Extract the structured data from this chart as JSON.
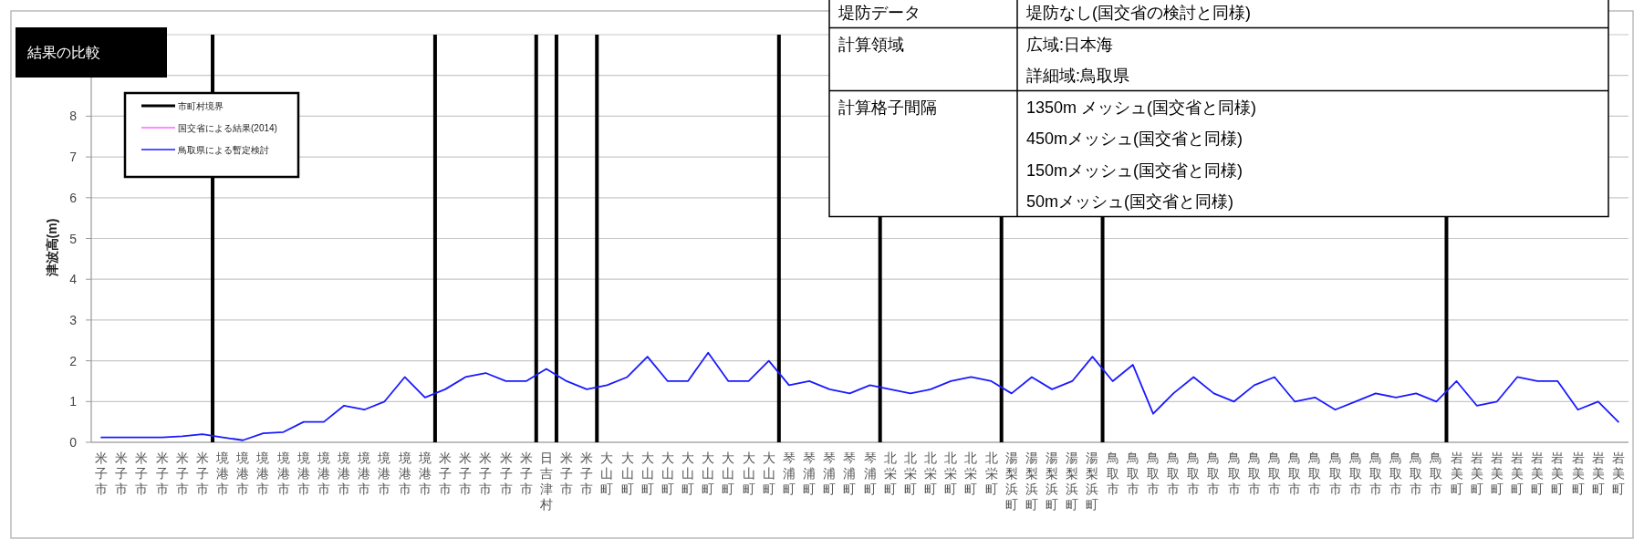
{
  "chart_data": [
    {
      "type": "line",
      "title": "結果の比較",
      "ylabel": "津波高(m)",
      "categories": [
        "米子市",
        "米子市",
        "米子市",
        "米子市",
        "米子市",
        "米子市",
        "境港市",
        "境港市",
        "境港市",
        "境港市",
        "境港市",
        "境港市",
        "境港市",
        "境港市",
        "境港市",
        "境港市",
        "境港市",
        "米子市",
        "米子市",
        "米子市",
        "米子市",
        "米子市",
        "日吉津村",
        "米子市",
        "米子市",
        "大山町",
        "大山町",
        "大山町",
        "大山町",
        "大山町",
        "大山町",
        "大山町",
        "大山町",
        "大山町",
        "琴浦町",
        "琴浦町",
        "琴浦町",
        "琴浦町",
        "琴浦町",
        "北栄町",
        "北栄町",
        "北栄町",
        "北栄町",
        "北栄町",
        "北栄町",
        "湯梨浜町",
        "湯梨浜町",
        "湯梨浜町",
        "湯梨浜町",
        "湯梨浜町",
        "鳥取市",
        "鳥取市",
        "鳥取市",
        "鳥取市",
        "鳥取市",
        "鳥取市",
        "鳥取市",
        "鳥取市",
        "鳥取市",
        "鳥取市",
        "鳥取市",
        "鳥取市",
        "鳥取市",
        "鳥取市",
        "鳥取市",
        "鳥取市",
        "鳥取市",
        "岩美町",
        "岩美町",
        "岩美町",
        "岩美町",
        "岩美町",
        "岩美町",
        "岩美町",
        "岩美町",
        "岩美町"
      ],
      "series": [
        {
          "name": "国交省による結果(2014)",
          "color": "#ff66ff",
          "values": [
            null,
            null,
            null,
            null,
            null,
            null,
            null,
            null,
            null,
            null,
            null,
            null,
            null,
            null,
            null,
            null,
            null,
            null,
            null,
            null,
            null,
            null,
            null,
            null,
            null,
            null,
            null,
            null,
            null,
            null,
            null,
            null,
            null,
            null,
            null,
            null,
            null,
            null,
            null,
            null,
            null,
            null,
            null,
            null,
            null,
            null,
            null,
            null,
            null,
            null,
            null,
            null,
            null,
            null,
            null,
            null,
            null,
            null,
            null,
            null,
            null,
            null,
            null,
            null,
            null,
            null,
            null,
            null,
            null,
            null,
            null,
            null,
            null,
            null,
            null,
            null
          ]
        },
        {
          "name": "鳥取県による暫定検討",
          "color": "#1a1aff",
          "values": [
            0.12,
            0.12,
            0.12,
            0.12,
            0.15,
            0.2,
            0.12,
            0.05,
            0.22,
            0.25,
            0.5,
            0.5,
            0.9,
            0.8,
            1.0,
            1.6,
            1.1,
            1.3,
            1.6,
            1.7,
            1.5,
            1.5,
            1.8,
            1.5,
            1.3,
            1.4,
            1.6,
            2.1,
            1.5,
            1.5,
            2.2,
            1.5,
            1.5,
            2.0,
            1.4,
            1.5,
            1.3,
            1.2,
            1.4,
            1.3,
            1.2,
            1.3,
            1.5,
            1.6,
            1.5,
            1.2,
            1.6,
            1.3,
            1.5,
            2.1,
            1.5,
            1.9,
            0.7,
            1.2,
            1.6,
            1.2,
            1.0,
            1.4,
            1.6,
            1.0,
            1.1,
            0.8,
            1.0,
            1.2,
            1.1,
            1.2,
            1.0,
            1.5,
            0.9,
            1.0,
            1.6,
            1.5,
            1.5,
            0.8,
            1.0,
            0.5
          ]
        }
      ],
      "ylim": [
        0,
        10
      ],
      "yticks": [
        0,
        1,
        2,
        3,
        4,
        5,
        6,
        7,
        8,
        {
          "value": 9,
          "label": null
        },
        {
          "value": 10,
          "label": null
        }
      ],
      "grid": "y",
      "legend": "top left",
      "line_style": "solid",
      "marker": "none",
      "annotations": [
        "市町村境界"
      ]
    },
    {
      "type": "other",
      "annotations": [
        "堤防データ",
        "堤防なし(国交省の検討と同様)",
        "計算領域",
        "広域:日本海",
        null,
        "詳細域:鳥取県",
        "計算格子間隔",
        "1350m メッシュ(国交省と同様)",
        null,
        "450mメッシュ(国交省と同様)",
        null,
        "150mメッシュ(国交省と同様)",
        null,
        "50mメッシュ(国交省と同様)"
      ]
    }
  ]
}
